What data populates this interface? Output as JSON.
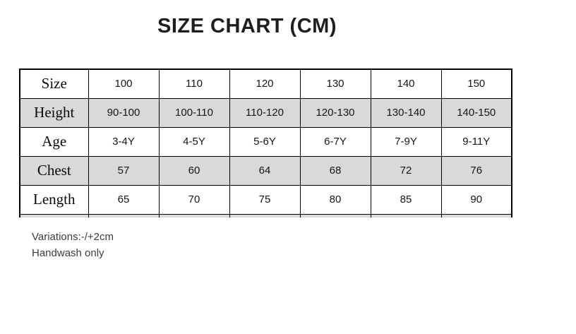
{
  "chart_data": {
    "type": "table",
    "title": "SIZE CHART (CM)",
    "row_headers": [
      "Size",
      "Height",
      "Age",
      "Chest",
      "Length"
    ],
    "rows": [
      {
        "label": "Size",
        "values": [
          "100",
          "110",
          "120",
          "130",
          "140",
          "150"
        ]
      },
      {
        "label": "Height",
        "values": [
          "90-100",
          "100-110",
          "110-120",
          "120-130",
          "130-140",
          "140-150"
        ]
      },
      {
        "label": "Age",
        "values": [
          "3-4Y",
          "4-5Y",
          "5-6Y",
          "6-7Y",
          "7-9Y",
          "9-11Y"
        ]
      },
      {
        "label": "Chest",
        "values": [
          "57",
          "60",
          "64",
          "68",
          "72",
          "76"
        ]
      },
      {
        "label": "Length",
        "values": [
          "65",
          "70",
          "75",
          "80",
          "85",
          "90"
        ]
      }
    ],
    "notes": [
      "Variations:-/+2cm",
      "Handwash only"
    ],
    "layout_hints": {
      "shaded_rows": [
        "Height",
        "Chest"
      ],
      "partial_row_cut_at_bottom": true,
      "units": "cm"
    }
  },
  "colors": {
    "shaded_row": "#d9d9d9",
    "border": "#000000",
    "title_text": "#1e1e1e",
    "note_text": "#3c3c3c"
  }
}
